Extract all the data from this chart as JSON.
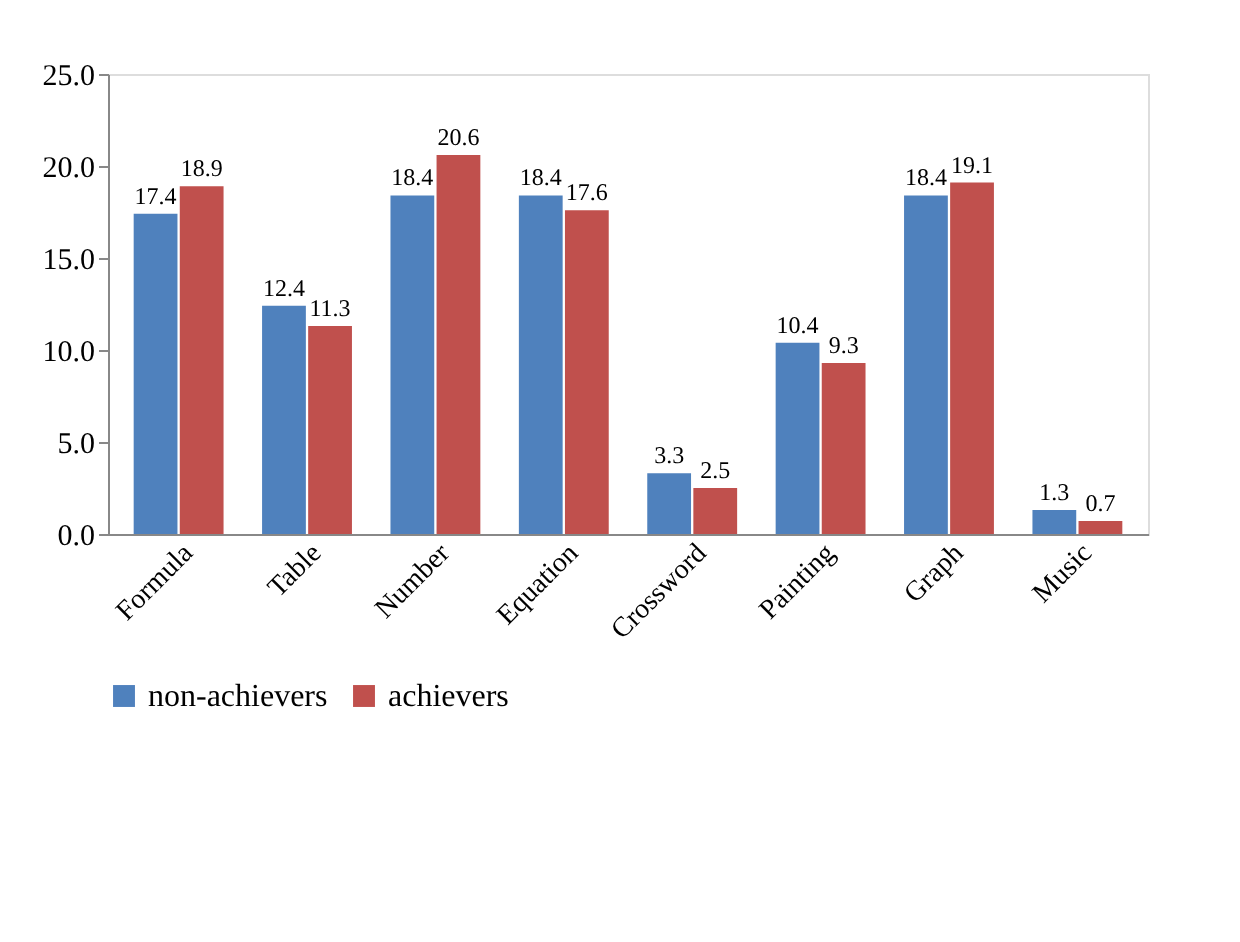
{
  "chart_data": {
    "type": "bar",
    "categories": [
      "Formula",
      "Table",
      "Number",
      "Equation",
      "Crossword",
      "Painting",
      "Graph",
      "Music"
    ],
    "series": [
      {
        "name": "non-achievers",
        "color": "#4f81bd",
        "values": [
          17.4,
          12.4,
          18.4,
          18.4,
          3.3,
          10.4,
          18.4,
          1.3
        ]
      },
      {
        "name": "achievers",
        "color": "#c0504d",
        "values": [
          18.9,
          11.3,
          20.6,
          17.6,
          2.5,
          9.3,
          19.1,
          0.7
        ]
      }
    ],
    "ylim": [
      0,
      25
    ],
    "yticks": [
      {
        "value": 0,
        "label": "0.0"
      },
      {
        "value": 5,
        "label": "5.0"
      },
      {
        "value": 10,
        "label": "10.0"
      },
      {
        "value": 15,
        "label": "15.0"
      },
      {
        "value": 20,
        "label": "20.0"
      },
      {
        "value": 25,
        "label": "25.0"
      }
    ],
    "data_labels": true,
    "legend": "bottom",
    "grid": false
  }
}
